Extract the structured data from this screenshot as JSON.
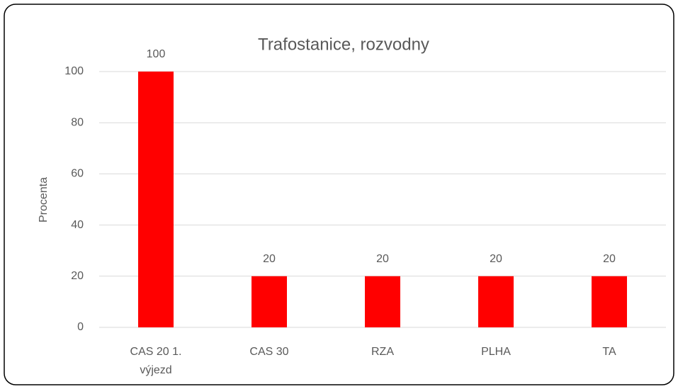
{
  "chart_data": {
    "type": "bar",
    "title": "Trafostanice, rozvodny",
    "y_label": "Procenta",
    "categories": [
      "CAS 20 1. výjezd",
      "CAS 30",
      "RZA",
      "PLHA",
      "TA"
    ],
    "values": [
      100,
      20,
      20,
      20,
      20
    ],
    "color": "#ff0000",
    "ylim": [
      0,
      100
    ],
    "yticks": [
      0,
      20,
      40,
      60,
      80,
      100
    ],
    "grid": true
  }
}
